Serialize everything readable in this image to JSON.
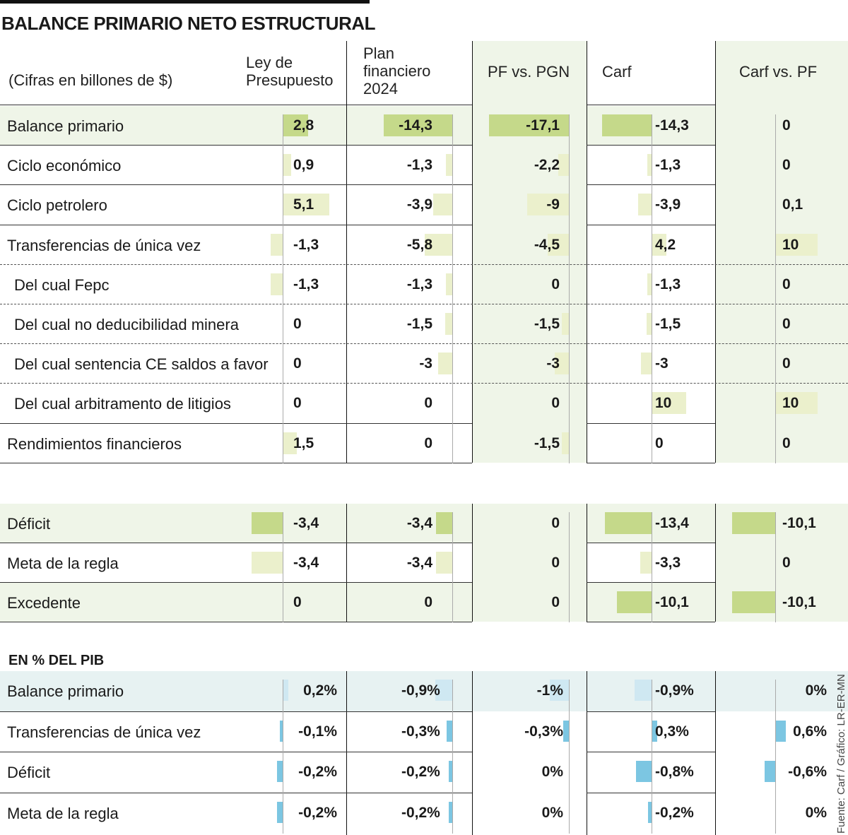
{
  "title": "BALANCE PRIMARIO NETO ESTRUCTURAL",
  "units_note": "(Cifras en billones de $)",
  "columns": [
    "Ley de Presupuesto",
    "Plan financiero 2024",
    "PF vs. PGN",
    "Carf",
    "Carf vs. PF"
  ],
  "colors": {
    "highlight_bar": "#c5d98a",
    "normal_bar": "#ebf0cc",
    "highlight_bg": "#eff5e8",
    "pib_bar": "#7cc6e2",
    "pib_light_bar": "#cfe8f2",
    "pib_highlight_bg": "#e7f2f2"
  },
  "chart_data": {
    "type": "table",
    "title": "BALANCE PRIMARIO NETO ESTRUCTURAL",
    "main_rows": [
      {
        "label": "Balance primario",
        "highlight": true,
        "values": [
          2.8,
          -14.3,
          -17.1,
          -14.3,
          0
        ],
        "display": [
          "2,8",
          "-14,3",
          "-17,1",
          "-14,3",
          "0"
        ]
      },
      {
        "label": "Ciclo económico",
        "values": [
          0.9,
          -1.3,
          -2.2,
          -1.3,
          0
        ],
        "display": [
          "0,9",
          "-1,3",
          "-2,2",
          "-1,3",
          "0"
        ]
      },
      {
        "label": "Ciclo petrolero",
        "values": [
          5.1,
          -3.9,
          -9,
          -3.9,
          0.1
        ],
        "display": [
          "5,1",
          "-3,9",
          "-9",
          "-3,9",
          "0,1"
        ]
      },
      {
        "label": "Transferencias de única vez",
        "values": [
          -1.3,
          -5.8,
          -4.5,
          4.2,
          10
        ],
        "display": [
          "-1,3",
          "-5,8",
          "-4,5",
          "4,2",
          "10"
        ]
      },
      {
        "label": "Del cual Fepc",
        "sub": true,
        "values": [
          -1.3,
          -1.3,
          0,
          -1.3,
          0
        ],
        "display": [
          "-1,3",
          "-1,3",
          "0",
          "-1,3",
          "0"
        ]
      },
      {
        "label": "Del cual no deducibilidad minera",
        "sub": true,
        "values": [
          0,
          -1.5,
          -1.5,
          -1.5,
          0
        ],
        "display": [
          "0",
          "-1,5",
          "-1,5",
          "-1,5",
          "0"
        ]
      },
      {
        "label": "Del cual sentencia CE saldos a favor",
        "sub": true,
        "values": [
          0,
          -3,
          -3,
          -3,
          0
        ],
        "display": [
          "0",
          "-3",
          "-3",
          "-3",
          "0"
        ]
      },
      {
        "label": "Del cual arbitramento de litigios",
        "sub": true,
        "values": [
          0,
          0,
          0,
          10,
          10
        ],
        "display": [
          "0",
          "0",
          "0",
          "10",
          "10"
        ]
      },
      {
        "label": "Rendimientos financieros",
        "values": [
          1.5,
          0,
          -1.5,
          0,
          0
        ],
        "display": [
          "1,5",
          "0",
          "-1,5",
          "0",
          "0"
        ]
      }
    ],
    "deficit_rows": [
      {
        "label": "Déficit",
        "highlight": true,
        "values": [
          -3.4,
          -3.4,
          0,
          -13.4,
          -10.1
        ],
        "display": [
          "-3,4",
          "-3,4",
          "0",
          "-13,4",
          "-10,1"
        ]
      },
      {
        "label": "Meta de la regla",
        "values": [
          -3.4,
          -3.4,
          0,
          -3.3,
          0
        ],
        "display": [
          "-3,4",
          "-3,4",
          "0",
          "-3,3",
          "0"
        ]
      },
      {
        "label": "Excedente",
        "highlight": true,
        "values": [
          0,
          0,
          0,
          -10.1,
          -10.1
        ],
        "display": [
          "0",
          "0",
          "0",
          "-10,1",
          "-10,1"
        ]
      }
    ],
    "pib_title": "EN % DEL PIB",
    "pib_rows": [
      {
        "label": "Balance primario",
        "highlight": true,
        "values": [
          0.2,
          -0.9,
          -1,
          -0.9,
          0
        ],
        "display": [
          "0,2%",
          "-0,9%",
          "-1%",
          "-0,9%",
          "0%"
        ]
      },
      {
        "label": "Transferencias de única vez",
        "values": [
          -0.1,
          -0.3,
          -0.3,
          0.3,
          0.6
        ],
        "display": [
          "-0,1%",
          "-0,3%",
          "-0,3%",
          "0,3%",
          "0,6%"
        ]
      },
      {
        "label": "Déficit",
        "values": [
          -0.2,
          -0.2,
          0,
          -0.8,
          -0.6
        ],
        "display": [
          "-0,2%",
          "-0,2%",
          "0%",
          "-0,8%",
          "-0,6%"
        ]
      },
      {
        "label": "Meta de la regla",
        "values": [
          -0.2,
          -0.2,
          0,
          -0.2,
          0
        ],
        "display": [
          "-0,2%",
          "-0,2%",
          "0%",
          "-0,2%",
          "0%"
        ]
      }
    ]
  },
  "source": "Fuente: Carf / Gráfico: LR-ER-MN"
}
